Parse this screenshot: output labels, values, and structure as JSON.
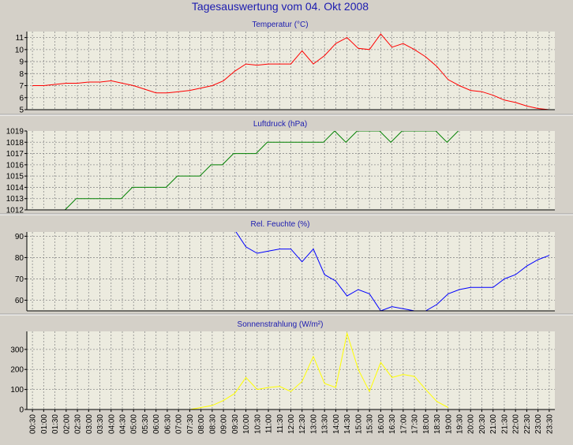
{
  "page_title": "Tagesauswertung vom 04. Okt 2008",
  "colors": {
    "background": "#d4d0c8",
    "plot_background": "#ecebdf",
    "grid": "#8c8c8c",
    "axis": "#000000",
    "title": "#1c1cb0",
    "temperature": "#ff0000",
    "pressure": "#008000",
    "humidity": "#0000ff",
    "radiation": "#ffff00"
  },
  "time_ticks": [
    "00:30",
    "01:00",
    "01:30",
    "02:00",
    "02:30",
    "03:00",
    "03:30",
    "04:00",
    "04:30",
    "05:00",
    "05:30",
    "06:00",
    "06:30",
    "07:00",
    "07:30",
    "08:00",
    "08:30",
    "09:00",
    "09:30",
    "10:00",
    "10:30",
    "11:00",
    "11:30",
    "12:00",
    "12:30",
    "13:00",
    "13:30",
    "14:00",
    "14:30",
    "15:00",
    "15:30",
    "16:00",
    "16:30",
    "17:00",
    "17:30",
    "18:00",
    "18:30",
    "19:00",
    "19:30",
    "20:00",
    "20:30",
    "21:00",
    "21:30",
    "22:00",
    "22:30",
    "23:00",
    "23:30"
  ],
  "chart_data": [
    {
      "type": "line",
      "title": "Temperatur (°C)",
      "color_key": "temperature",
      "ylim": [
        5,
        11.5
      ],
      "yticks": [
        5,
        6,
        7,
        8,
        9,
        10,
        11
      ],
      "grid": true,
      "x": [
        0,
        1,
        2,
        3,
        4,
        5,
        6,
        7,
        8,
        9,
        10,
        11,
        12,
        13,
        14,
        15,
        16,
        17,
        18,
        19,
        20,
        21,
        22,
        23,
        24,
        25,
        26,
        27,
        28,
        29,
        30,
        31,
        32,
        33,
        34,
        35,
        36,
        37,
        38,
        39,
        40,
        41,
        42,
        43,
        44,
        45,
        46
      ],
      "values": [
        7.0,
        7.0,
        7.1,
        7.2,
        7.2,
        7.3,
        7.3,
        7.4,
        7.2,
        7.0,
        6.7,
        6.4,
        6.4,
        6.5,
        6.6,
        6.8,
        7.0,
        7.4,
        8.2,
        8.8,
        8.7,
        8.8,
        8.8,
        8.8,
        9.9,
        8.8,
        9.5,
        10.5,
        11.0,
        10.1,
        10.0,
        11.3,
        10.2,
        10.5,
        10.0,
        9.4,
        8.6,
        7.5,
        7.0,
        6.6,
        6.5,
        6.2,
        5.8,
        5.6,
        5.3,
        5.1,
        5.0
      ]
    },
    {
      "type": "line",
      "title": "Luftdruck (hPa)",
      "color_key": "pressure",
      "ylim": [
        1012,
        1019
      ],
      "yticks": [
        1012,
        1013,
        1014,
        1015,
        1016,
        1017,
        1018,
        1019
      ],
      "grid": true,
      "x": [
        2.9,
        3.9,
        4.9,
        5.9,
        6.9,
        7.9,
        8.9,
        9.9,
        10.9,
        11.9,
        12.9,
        13.9,
        14.9,
        15.9,
        16.9,
        17.9,
        18.9,
        19.9,
        20.9,
        21.9,
        22.9,
        23.9,
        24.9,
        25.9,
        26.9,
        27.9,
        28.9,
        29.9,
        30.9,
        31.9,
        32.9,
        33.9,
        34.9,
        35.9,
        36.9,
        37.9
      ],
      "values": [
        1012,
        1013,
        1013,
        1013,
        1013,
        1013,
        1014,
        1014,
        1014,
        1014,
        1015,
        1015,
        1015,
        1016,
        1016,
        1017,
        1017,
        1017,
        1018,
        1018,
        1018,
        1018,
        1018,
        1018,
        1019,
        1018,
        1019,
        1019,
        1019,
        1018,
        1019,
        1019,
        1019,
        1019,
        1018,
        1019
      ]
    },
    {
      "type": "line",
      "title": "Rel. Feuchte (%)",
      "color_key": "humidity",
      "ylim": [
        55,
        92
      ],
      "yticks": [
        60,
        70,
        80,
        90
      ],
      "grid": true,
      "x": [
        18,
        19,
        20,
        21,
        22,
        23,
        24,
        25,
        26,
        27,
        28,
        29,
        30,
        31,
        32,
        33,
        34,
        35,
        36,
        37,
        38,
        39,
        40,
        41,
        42,
        43,
        44,
        45,
        46
      ],
      "values": [
        93,
        85,
        82,
        83,
        84,
        84,
        78,
        84,
        72,
        69,
        62,
        65,
        63,
        55,
        57,
        56,
        55,
        55,
        58,
        63,
        65,
        66,
        66,
        66,
        70,
        72,
        76,
        79,
        81
      ]
    },
    {
      "type": "line",
      "title": "Sonnenstrahlung (W/m²)",
      "color_key": "radiation",
      "ylim": [
        0,
        390
      ],
      "yticks": [
        0,
        100,
        200,
        300
      ],
      "grid": true,
      "x": [
        13,
        14,
        15,
        16,
        17,
        18,
        19,
        20,
        21,
        22,
        23,
        24,
        25,
        26,
        27,
        28,
        29,
        30,
        31,
        32,
        33,
        34,
        35,
        36,
        37
      ],
      "values": [
        0,
        0,
        10,
        20,
        45,
        80,
        160,
        100,
        110,
        115,
        90,
        140,
        265,
        130,
        110,
        380,
        200,
        90,
        235,
        160,
        175,
        165,
        100,
        40,
        10
      ]
    }
  ]
}
